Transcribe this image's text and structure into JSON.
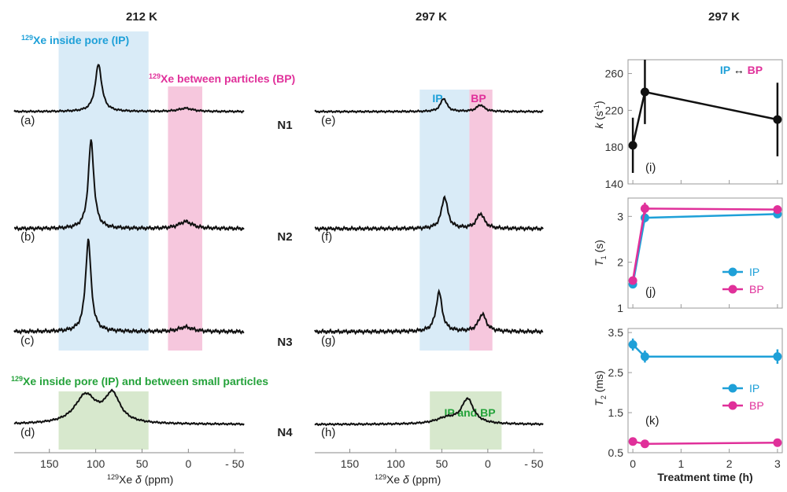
{
  "titles": {
    "col1": "212 K",
    "col2": "297 K",
    "col3": "297 K"
  },
  "labels": {
    "ip_top": "129Xe  inside pore (IP)",
    "bp_top": "129Xe between particles (BP)",
    "ip_bp_small": "129Xe  inside pore (IP) and between small particles",
    "ip": "IP",
    "bp": "BP",
    "ip_and_bp": "IP and BP",
    "exchange": "IP ↔ BP"
  },
  "samples": [
    "N1",
    "N2",
    "N3",
    "N4"
  ],
  "panel_letters": [
    "(a)",
    "(b)",
    "(c)",
    "(d)",
    "(e)",
    "(f)",
    "(g)",
    "(h)",
    "(i)",
    "(j)",
    "(k)"
  ],
  "nmr_axis": {
    "ticks": [
      "150",
      "100",
      "50",
      "0",
      "- 50"
    ],
    "xlabel": "129Xe  δ  (ppm)"
  },
  "colors": {
    "ip": "#1ea0d8",
    "bp": "#e0309a",
    "green_text": "#24a23a",
    "ip_band": "#d9ebf7",
    "bp_band": "#f6c7dd",
    "green_band": "#d7e8cd"
  },
  "chart_data": [
    {
      "type": "line",
      "name": "212 K 129Xe NMR spectra",
      "xlim": [
        188,
        -60
      ],
      "traces": [
        {
          "panel": "(a)",
          "sample": "N1",
          "peaks": [
            {
              "center": 97,
              "height": 1.0,
              "width": 4.2
            },
            {
              "center": 3,
              "height": 0.07,
              "width": 9
            }
          ]
        },
        {
          "panel": "(b)",
          "sample": "N2",
          "peaks": [
            {
              "center": 105,
              "height": 1.0,
              "width": 3.6
            },
            {
              "center": 3,
              "height": 0.08,
              "width": 9
            }
          ]
        },
        {
          "panel": "(c)",
          "sample": "N3",
          "peaks": [
            {
              "center": 108,
              "height": 1.0,
              "width": 3.6
            },
            {
              "center": 3,
              "height": 0.05,
              "width": 9
            }
          ]
        },
        {
          "panel": "(d)",
          "sample": "N4",
          "peaks": [
            {
              "center": 111,
              "height": 0.6,
              "width": 14
            },
            {
              "center": 82,
              "height": 0.6,
              "width": 10
            }
          ]
        }
      ],
      "bands": [
        {
          "label": "IP",
          "from": 140,
          "to": 43,
          "rows": [
            0,
            1,
            2
          ]
        },
        {
          "label": "BP",
          "from": 22,
          "to": -15,
          "rows": [
            0,
            1,
            2
          ]
        },
        {
          "label": "IP+small particles",
          "from": 140,
          "to": 43,
          "rows": [
            3
          ]
        }
      ]
    },
    {
      "type": "line",
      "name": "297 K 129Xe NMR spectra",
      "xlim": [
        188,
        -60
      ],
      "traces": [
        {
          "panel": "(e)",
          "sample": "N1",
          "peaks": [
            {
              "center": 48,
              "height": 0.28,
              "width": 4
            },
            {
              "center": 8,
              "height": 0.14,
              "width": 5
            }
          ]
        },
        {
          "panel": "(f)",
          "sample": "N2",
          "peaks": [
            {
              "center": 47,
              "height": 0.36,
              "width": 4
            },
            {
              "center": 8,
              "height": 0.17,
              "width": 5
            }
          ]
        },
        {
          "panel": "(g)",
          "sample": "N3",
          "peaks": [
            {
              "center": 53,
              "height": 0.43,
              "width": 4
            },
            {
              "center": 6,
              "height": 0.19,
              "width": 5
            }
          ]
        },
        {
          "panel": "(h)",
          "sample": "N4",
          "peaks": [
            {
              "center": 22,
              "height": 0.52,
              "width": 8
            },
            {
              "center": 45,
              "height": 0.12,
              "width": 14
            }
          ]
        }
      ],
      "bands": [
        {
          "label": "IP",
          "from": 74,
          "to": 20,
          "rows": [
            0,
            1,
            2
          ]
        },
        {
          "label": "BP",
          "from": 20,
          "to": -5,
          "rows": [
            0,
            1,
            2
          ]
        },
        {
          "label": "IP and BP",
          "from": 63,
          "to": -15,
          "rows": [
            3
          ]
        }
      ]
    },
    {
      "type": "line",
      "panel": "(i)",
      "ylabel": "k (s-1)",
      "ylim": [
        140,
        275
      ],
      "yticks": [
        140,
        180,
        220,
        260
      ],
      "xlim": [
        -0.1,
        3.1
      ],
      "series": [
        {
          "name": "IP ↔ BP",
          "x": [
            0,
            0.25,
            3
          ],
          "values": [
            182,
            240,
            210
          ],
          "err": [
            30,
            35,
            40
          ],
          "color": "#111111"
        }
      ]
    },
    {
      "type": "line",
      "panel": "(j)",
      "ylabel": "T1 (s)",
      "ylim": [
        1,
        3.4
      ],
      "yticks": [
        1,
        2,
        3
      ],
      "xlim": [
        -0.1,
        3.1
      ],
      "series": [
        {
          "name": "IP",
          "x": [
            0,
            0.25,
            3
          ],
          "values": [
            1.52,
            2.97,
            3.05
          ],
          "err": [
            0.08,
            0.1,
            0.06
          ],
          "color": "#1ea0d8"
        },
        {
          "name": "BP",
          "x": [
            0,
            0.25,
            3
          ],
          "values": [
            1.6,
            3.17,
            3.15
          ],
          "err": [
            0.05,
            0.13,
            0.09
          ],
          "color": "#e0309a"
        }
      ]
    },
    {
      "type": "line",
      "panel": "(k)",
      "ylabel": "T2 (ms)",
      "xlabel": "Treatment time (h)",
      "ylim": [
        0.5,
        3.6
      ],
      "yticks": [
        0.5,
        1.5,
        2.5,
        3.5
      ],
      "xticks": [
        0,
        1,
        2,
        3
      ],
      "xlim": [
        -0.1,
        3.1
      ],
      "series": [
        {
          "name": "IP",
          "x": [
            0,
            0.25,
            3
          ],
          "values": [
            3.2,
            2.9,
            2.9
          ],
          "err": [
            0.15,
            0.15,
            0.18
          ],
          "color": "#1ea0d8"
        },
        {
          "name": "BP",
          "x": [
            0,
            0.25,
            3
          ],
          "values": [
            0.78,
            0.72,
            0.75
          ],
          "err": [
            0.04,
            0.03,
            0.05
          ],
          "color": "#e0309a"
        }
      ]
    }
  ]
}
